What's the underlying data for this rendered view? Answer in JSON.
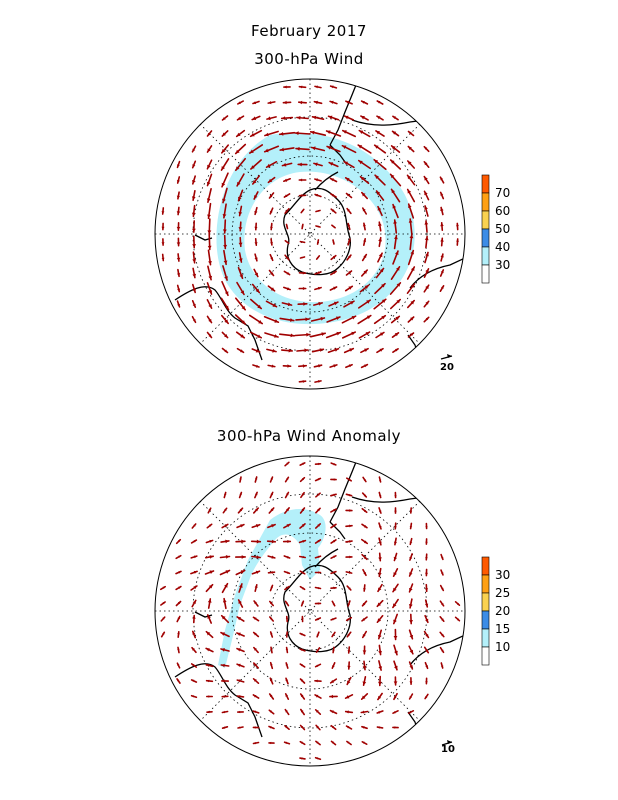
{
  "figure": {
    "title_line1": "February 2017",
    "title_line2": "300-hPa Wind",
    "title_anomaly": "300-hPa Wind Anomaly"
  },
  "maps": [
    {
      "id": "wind",
      "reference_vector_label": "20",
      "colorbar": {
        "labels": [
          "30",
          "40",
          "50",
          "60",
          "70"
        ],
        "colors": [
          "#ffffff",
          "#b4f0fa",
          "#3c8ce6",
          "#fad250",
          "#ffa014",
          "#ff5a00"
        ]
      }
    },
    {
      "id": "anomaly",
      "reference_vector_label": "10",
      "colorbar": {
        "labels": [
          "10",
          "15",
          "20",
          "25",
          "30"
        ],
        "colors": [
          "#ffffff",
          "#b4f0fa",
          "#3c8ce6",
          "#fad250",
          "#ffa014",
          "#ff5a00"
        ]
      }
    }
  ],
  "style": {
    "vector_color": "#a00000",
    "shade_color": "#b4f0fa",
    "coast_color": "#000000"
  }
}
